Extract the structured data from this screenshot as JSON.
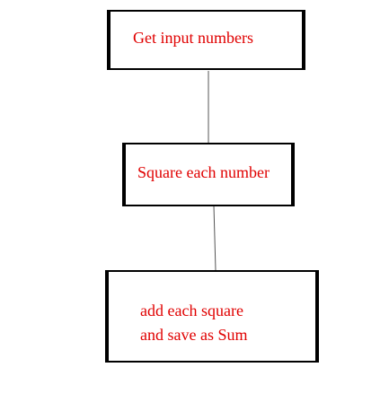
{
  "diagram": {
    "nodes": [
      {
        "id": "get-input",
        "lines": [
          "Get input numbers"
        ]
      },
      {
        "id": "square-each",
        "lines": [
          "Square each number"
        ]
      },
      {
        "id": "add-squares",
        "lines": [
          "add each square",
          "and save as Sum"
        ]
      }
    ],
    "edges": [
      {
        "from": "get-input",
        "to": "square-each"
      },
      {
        "from": "square-each",
        "to": "add-squares"
      }
    ],
    "colors": {
      "text": "#e00000",
      "border": "#000000",
      "connector": "#555555"
    }
  }
}
